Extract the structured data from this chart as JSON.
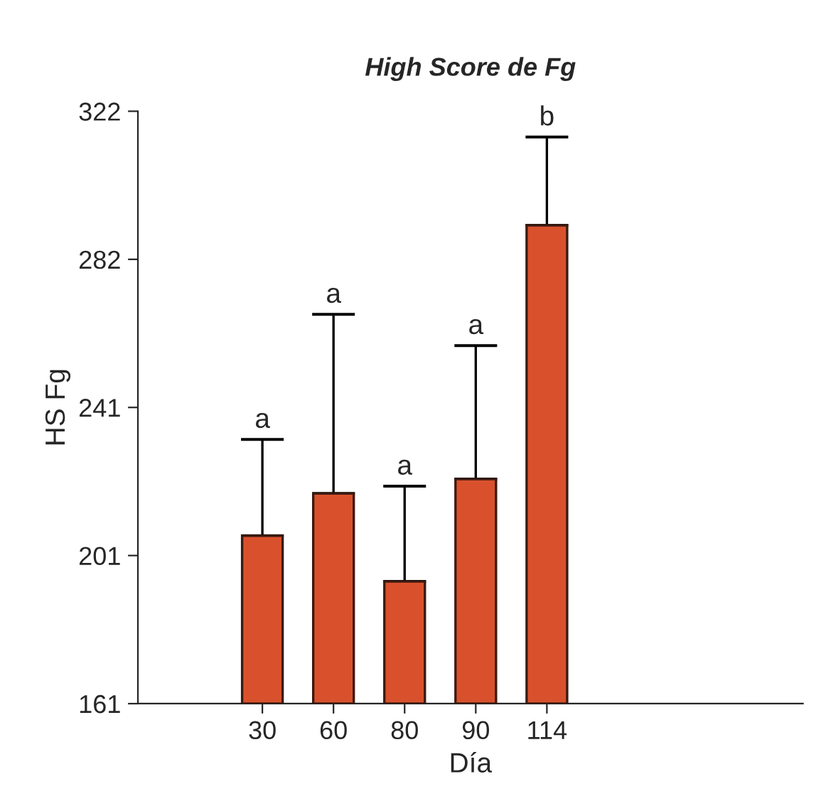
{
  "chart_data": {
    "type": "bar",
    "title": "High Score de Fg",
    "xlabel": "Día",
    "ylabel": "HS Fg",
    "categories": [
      "30",
      "60",
      "80",
      "90",
      "114"
    ],
    "values": [
      206.6,
      218.1,
      194.2,
      222,
      291
    ],
    "errors": [
      [
        206.6,
        232.8
      ],
      [
        218.1,
        266.8
      ],
      [
        194.2,
        220.1
      ],
      [
        222,
        258.3
      ],
      [
        291,
        315
      ]
    ],
    "color": "#d9512c",
    "ylim": [
      161,
      322
    ],
    "yticks": [
      161,
      {
        "value": 201.25,
        "label": "201"
      },
      {
        "value": 241.5,
        "label": "241"
      },
      {
        "value": 281.75,
        "label": "282"
      },
      322
    ],
    "annotations": [
      {
        "text": "a",
        "x": "30",
        "y": 232.8
      },
      {
        "text": "a",
        "x": "60",
        "y": 266.8
      },
      {
        "text": "a",
        "x": "80",
        "y": 220.1
      },
      {
        "text": "a",
        "x": "90",
        "y": 258.3
      },
      {
        "text": "b",
        "x": "114",
        "y": 315
      }
    ],
    "grid": false,
    "legend": false
  }
}
